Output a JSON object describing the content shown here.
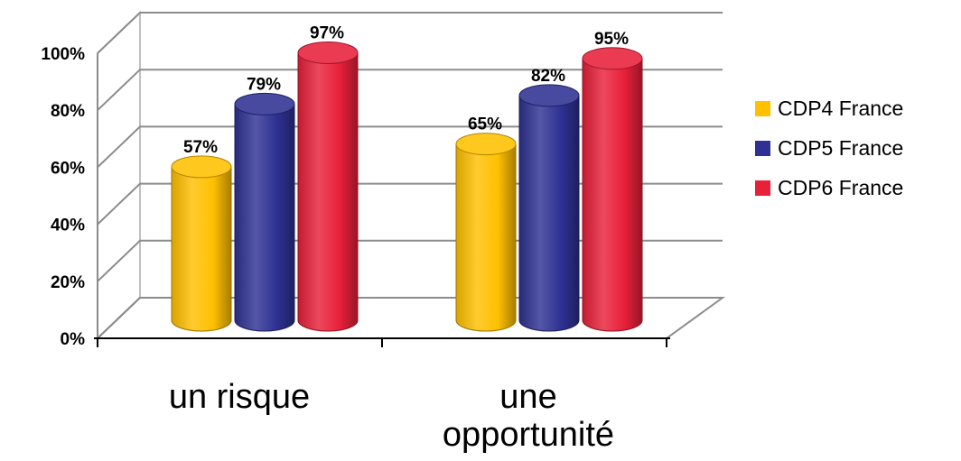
{
  "chart_data": {
    "type": "bar",
    "style": "3d-cylinder",
    "categories": [
      "un risque",
      "une opportunité"
    ],
    "series": [
      {
        "name": "CDP4 France",
        "values": [
          57,
          65
        ],
        "color": "#ffc000"
      },
      {
        "name": "CDP5 France",
        "values": [
          79,
          82
        ],
        "color": "#2e3192"
      },
      {
        "name": "CDP6 France",
        "values": [
          97,
          95
        ],
        "color": "#e8203a"
      }
    ],
    "data_labels": [
      [
        "57%",
        "65%"
      ],
      [
        "79%",
        "82%"
      ],
      [
        "97%",
        "95%"
      ]
    ],
    "ylim": [
      0,
      100
    ],
    "y_ticks": [
      0,
      20,
      40,
      60,
      80,
      100
    ],
    "y_tick_labels": [
      "0%",
      "20%",
      "40%",
      "60%",
      "80%",
      "100%"
    ],
    "grid": true,
    "legend_position": "right"
  }
}
